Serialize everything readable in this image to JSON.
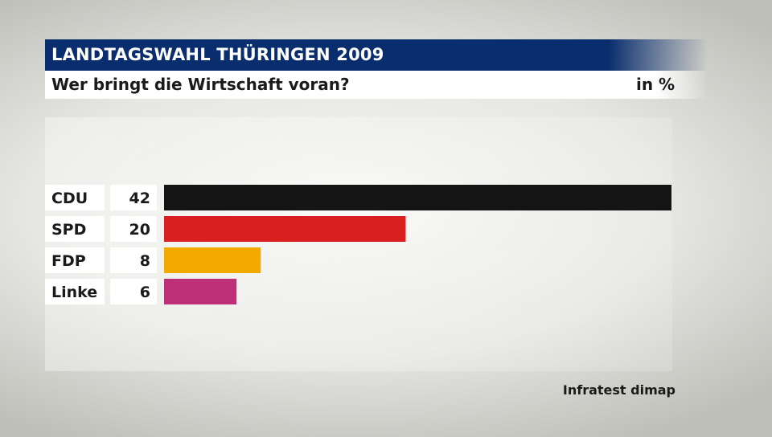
{
  "header": {
    "title": "LANDTAGSWAHL THÜRINGEN 2009",
    "subtitle": "Wer bringt die Wirtschaft voran?",
    "unit": "in %"
  },
  "source": "Infratest dimap",
  "colors": {
    "header": "#0a2d6e"
  },
  "chart_data": {
    "type": "bar",
    "orientation": "horizontal",
    "categories": [
      "CDU",
      "SPD",
      "FDP",
      "Linke"
    ],
    "values": [
      42,
      20,
      8,
      6
    ],
    "colors": [
      "#141414",
      "#d91f1f",
      "#f2a900",
      "#be2f7a"
    ],
    "xlim": [
      0,
      42
    ],
    "grid": false,
    "legend": false
  }
}
